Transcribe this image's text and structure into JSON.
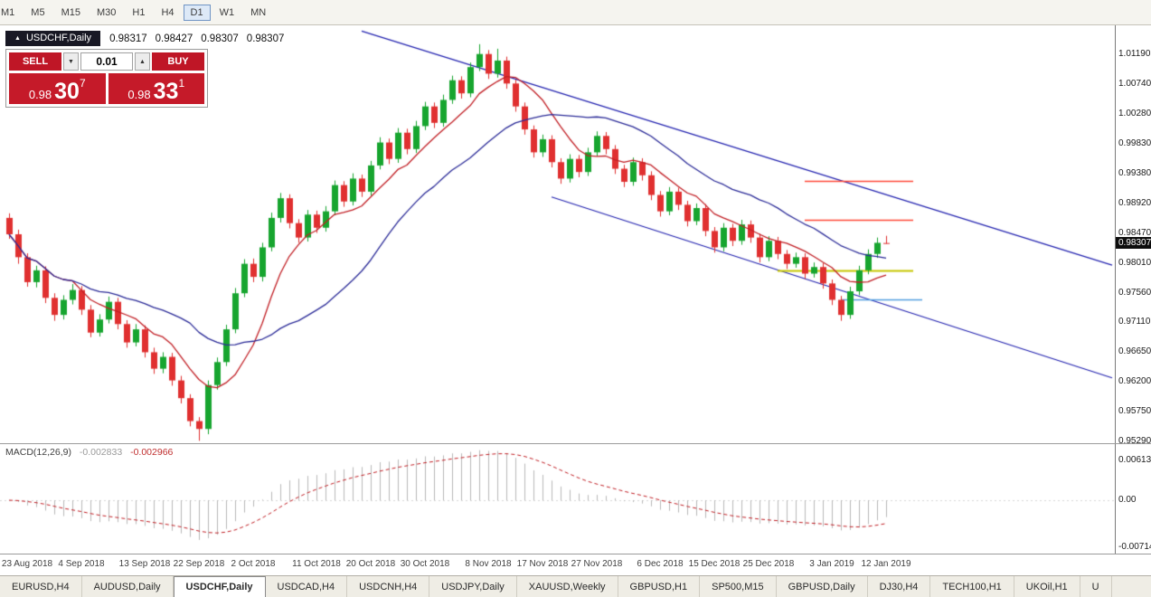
{
  "toolbar": {
    "timeframes": [
      "M1",
      "M5",
      "M15",
      "M30",
      "H1",
      "H4",
      "D1",
      "W1",
      "MN"
    ],
    "active_timeframe": "D1"
  },
  "chart_header": {
    "symbol": "USDCHF,Daily",
    "open": "0.98317",
    "high": "0.98427",
    "low": "0.98307",
    "close": "0.98307"
  },
  "one_click": {
    "sell_label": "SELL",
    "buy_label": "BUY",
    "volume": "0.01",
    "sell_price_small": "0.98",
    "sell_price_big": "30",
    "sell_price_sup": "7",
    "buy_price_small": "0.98",
    "buy_price_big": "33",
    "buy_price_sup": "1"
  },
  "icons": {
    "symbol_tab_arrow": "▲",
    "dropdown_arrow": "▼",
    "up_arrow": "▲"
  },
  "macd": {
    "label": "MACD(12,26,9)",
    "value_main": "-0.002833",
    "value_signal": "-0.002966",
    "axis_labels": [
      "0.006137",
      "0.00",
      "-0.007142"
    ]
  },
  "tabs": {
    "active": "USDCHF,Daily",
    "items": [
      "EURUSD,H4",
      "AUDUSD,Daily",
      "USDCHF,Daily",
      "USDCAD,H4",
      "USDCNH,H4",
      "USDJPY,Daily",
      "XAUUSD,Weekly",
      "GBPUSD,H1",
      "SP500,M15",
      "GBPUSD,Daily",
      "DJ30,H4",
      "TECH100,H1",
      "UKOil,H1",
      "U"
    ]
  },
  "colors": {
    "bull": "#17a52f",
    "bear": "#e03030",
    "ma_fast": "#c22026",
    "ma_slow": "#2d2d99",
    "trendline": "#2424b0",
    "macd_hist": "#b9b9b9",
    "macd_signal": "#c22026",
    "accent_red": "#bf1626"
  },
  "chart_data": {
    "type": "candlestick",
    "symbol": "USDCHF",
    "timeframe": "Daily",
    "current_price_label": "0.98307",
    "ohlc_current": {
      "open": 0.98317,
      "high": 0.98427,
      "low": 0.98307,
      "close": 0.98307
    },
    "y_tick_labels": [
      "1.01190",
      "1.00740",
      "1.00280",
      "0.99830",
      "0.99380",
      "0.98920",
      "0.98470",
      "0.98010",
      "0.97560",
      "0.97110",
      "0.96650",
      "0.96200",
      "0.95750",
      "0.95290"
    ],
    "x_ticks": [
      {
        "index": 2,
        "label": "23 Aug 2018"
      },
      {
        "index": 8,
        "label": "4 Sep 2018"
      },
      {
        "index": 15,
        "label": "13 Sep 2018"
      },
      {
        "index": 21,
        "label": "22 Sep 2018"
      },
      {
        "index": 27,
        "label": "2 Oct 2018"
      },
      {
        "index": 34,
        "label": "11 Oct 2018"
      },
      {
        "index": 40,
        "label": "20 Oct 2018"
      },
      {
        "index": 46,
        "label": "30 Oct 2018"
      },
      {
        "index": 53,
        "label": "8 Nov 2018"
      },
      {
        "index": 59,
        "label": "17 Nov 2018"
      },
      {
        "index": 65,
        "label": "27 Nov 2018"
      },
      {
        "index": 72,
        "label": "6 Dec 2018"
      },
      {
        "index": 78,
        "label": "15 Dec 2018"
      },
      {
        "index": 84,
        "label": "25 Dec 2018"
      },
      {
        "index": 91,
        "label": "3 Jan 2019"
      },
      {
        "index": 97,
        "label": "12 Jan 2019"
      }
    ],
    "candles": [
      [
        0.987,
        0.9877,
        0.9838,
        0.9845
      ],
      [
        0.9845,
        0.9852,
        0.98,
        0.981
      ],
      [
        0.981,
        0.9816,
        0.9765,
        0.9772
      ],
      [
        0.9772,
        0.9797,
        0.9764,
        0.979
      ],
      [
        0.979,
        0.9796,
        0.974,
        0.9748
      ],
      [
        0.9748,
        0.9755,
        0.9713,
        0.9722
      ],
      [
        0.9722,
        0.9752,
        0.9715,
        0.9745
      ],
      [
        0.9745,
        0.9769,
        0.9738,
        0.976
      ],
      [
        0.976,
        0.9766,
        0.9722,
        0.973
      ],
      [
        0.973,
        0.9737,
        0.9688,
        0.9695
      ],
      [
        0.9695,
        0.9723,
        0.9689,
        0.9715
      ],
      [
        0.9715,
        0.975,
        0.9709,
        0.9742
      ],
      [
        0.9742,
        0.9748,
        0.97,
        0.9708
      ],
      [
        0.9708,
        0.9714,
        0.9672,
        0.968
      ],
      [
        0.968,
        0.9708,
        0.9674,
        0.97
      ],
      [
        0.97,
        0.9706,
        0.9657,
        0.9665
      ],
      [
        0.9665,
        0.9672,
        0.9632,
        0.964
      ],
      [
        0.964,
        0.9665,
        0.9633,
        0.9658
      ],
      [
        0.9658,
        0.9664,
        0.9614,
        0.9622
      ],
      [
        0.9622,
        0.9629,
        0.9587,
        0.9595
      ],
      [
        0.9595,
        0.9601,
        0.9552,
        0.956
      ],
      [
        0.956,
        0.9566,
        0.953,
        0.9548
      ],
      [
        0.9548,
        0.9622,
        0.954,
        0.9615
      ],
      [
        0.9615,
        0.9657,
        0.9608,
        0.965
      ],
      [
        0.965,
        0.9707,
        0.9644,
        0.97
      ],
      [
        0.97,
        0.9763,
        0.9694,
        0.9755
      ],
      [
        0.9755,
        0.9807,
        0.9749,
        0.98
      ],
      [
        0.98,
        0.9808,
        0.9772,
        0.978
      ],
      [
        0.978,
        0.9832,
        0.9773,
        0.9825
      ],
      [
        0.9825,
        0.9878,
        0.9819,
        0.987
      ],
      [
        0.987,
        0.9908,
        0.9863,
        0.99
      ],
      [
        0.99,
        0.9906,
        0.9854,
        0.9862
      ],
      [
        0.9862,
        0.9868,
        0.9832,
        0.984
      ],
      [
        0.984,
        0.9882,
        0.9834,
        0.9875
      ],
      [
        0.9875,
        0.9881,
        0.9847,
        0.9855
      ],
      [
        0.9855,
        0.9888,
        0.9849,
        0.988
      ],
      [
        0.988,
        0.9927,
        0.9874,
        0.992
      ],
      [
        0.992,
        0.9926,
        0.9887,
        0.9895
      ],
      [
        0.9895,
        0.9938,
        0.9889,
        0.993
      ],
      [
        0.993,
        0.9936,
        0.9902,
        0.991
      ],
      [
        0.991,
        0.9957,
        0.9904,
        0.995
      ],
      [
        0.995,
        0.9993,
        0.9944,
        0.9985
      ],
      [
        0.9985,
        0.9991,
        0.9952,
        0.996
      ],
      [
        0.996,
        1.0007,
        0.9954,
        1.0
      ],
      [
        1.0,
        1.0006,
        0.9967,
        0.9975
      ],
      [
        0.9975,
        1.0018,
        0.9969,
        1.001
      ],
      [
        1.001,
        1.0047,
        1.0004,
        1.004
      ],
      [
        1.004,
        1.0046,
        1.0007,
        1.0015
      ],
      [
        1.0015,
        1.0058,
        1.0009,
        1.005
      ],
      [
        1.005,
        1.0087,
        1.0044,
        1.008
      ],
      [
        1.008,
        1.0086,
        1.0052,
        1.006
      ],
      [
        1.006,
        1.0107,
        1.0054,
        1.01
      ],
      [
        1.01,
        1.0135,
        1.0094,
        1.012
      ],
      [
        1.012,
        1.0126,
        1.0082,
        1.009
      ],
      [
        1.009,
        1.0128,
        1.0084,
        1.011
      ],
      [
        1.011,
        1.0116,
        1.0067,
        1.0075
      ],
      [
        1.0075,
        1.0081,
        1.0032,
        1.004
      ],
      [
        1.004,
        1.0046,
        0.9997,
        1.0005
      ],
      [
        1.0005,
        1.0011,
        0.9962,
        0.997
      ],
      [
        0.997,
        0.9997,
        0.9963,
        0.999
      ],
      [
        0.999,
        0.9996,
        0.9947,
        0.9955
      ],
      [
        0.9955,
        0.9961,
        0.9922,
        0.993
      ],
      [
        0.993,
        0.9967,
        0.9924,
        0.996
      ],
      [
        0.996,
        0.9966,
        0.9932,
        0.994
      ],
      [
        0.994,
        0.9977,
        0.9934,
        0.997
      ],
      [
        0.997,
        1.0002,
        0.9964,
        0.9995
      ],
      [
        0.9995,
        1.0001,
        0.9967,
        0.9975
      ],
      [
        0.9975,
        0.9981,
        0.9937,
        0.9945
      ],
      [
        0.9945,
        0.9951,
        0.9917,
        0.9925
      ],
      [
        0.9925,
        0.9962,
        0.9919,
        0.9955
      ],
      [
        0.9955,
        0.9961,
        0.9927,
        0.9935
      ],
      [
        0.9935,
        0.9941,
        0.9897,
        0.9905
      ],
      [
        0.9905,
        0.9911,
        0.9872,
        0.988
      ],
      [
        0.988,
        0.9917,
        0.9874,
        0.991
      ],
      [
        0.991,
        0.9916,
        0.9882,
        0.989
      ],
      [
        0.989,
        0.9896,
        0.9857,
        0.9865
      ],
      [
        0.9865,
        0.9892,
        0.9859,
        0.9885
      ],
      [
        0.9885,
        0.9891,
        0.9842,
        0.985
      ],
      [
        0.985,
        0.9856,
        0.9817,
        0.9825
      ],
      [
        0.9825,
        0.9862,
        0.9819,
        0.9855
      ],
      [
        0.9855,
        0.9861,
        0.9827,
        0.9835
      ],
      [
        0.9835,
        0.9867,
        0.9829,
        0.986
      ],
      [
        0.986,
        0.9866,
        0.9832,
        0.984
      ],
      [
        0.984,
        0.9846,
        0.9802,
        0.981
      ],
      [
        0.981,
        0.9842,
        0.9804,
        0.9835
      ],
      [
        0.9835,
        0.9841,
        0.9807,
        0.9815
      ],
      [
        0.9815,
        0.9821,
        0.9792,
        0.98
      ],
      [
        0.98,
        0.9817,
        0.9794,
        0.981
      ],
      [
        0.981,
        0.9816,
        0.9777,
        0.9785
      ],
      [
        0.9785,
        0.9802,
        0.9779,
        0.9795
      ],
      [
        0.9795,
        0.9801,
        0.9762,
        0.977
      ],
      [
        0.977,
        0.9776,
        0.9737,
        0.9745
      ],
      [
        0.9745,
        0.9751,
        0.9713,
        0.9722
      ],
      [
        0.9722,
        0.9765,
        0.9716,
        0.9758
      ],
      [
        0.9758,
        0.9797,
        0.9752,
        0.979
      ],
      [
        0.979,
        0.9822,
        0.9784,
        0.9815
      ],
      [
        0.9815,
        0.984,
        0.9809,
        0.9832
      ],
      [
        0.98317,
        0.98427,
        0.98307,
        0.98307
      ]
    ],
    "overlays": {
      "moving_averages": [
        {
          "type": "sma",
          "period": 8,
          "color": "#c22026"
        },
        {
          "type": "sma",
          "period": 21,
          "color": "#2d2d99"
        }
      ],
      "trendlines": [
        {
          "i1": 39,
          "p1": 1.0155,
          "i2": 122,
          "p2": 0.9798,
          "color": "#2424b0"
        },
        {
          "i1": 60,
          "p1": 0.9902,
          "i2": 122,
          "p2": 0.9626,
          "color": "#2424b0"
        }
      ],
      "hlines": [
        {
          "price": 0.9926,
          "i1": 88,
          "i2": 100,
          "color": "#ff4a3a",
          "width": 1.5
        },
        {
          "price": 0.9867,
          "i1": 88,
          "i2": 100,
          "color": "#ff4a3a",
          "width": 1.5
        },
        {
          "price": 0.979,
          "i1": 85,
          "i2": 100,
          "color": "#c6c600",
          "width": 1.8
        },
        {
          "price": 0.9746,
          "i1": 92,
          "i2": 101,
          "color": "#55a0e0",
          "width": 1.3
        }
      ]
    },
    "indicator": {
      "name": "MACD",
      "params": [
        12,
        26,
        9
      ]
    }
  }
}
